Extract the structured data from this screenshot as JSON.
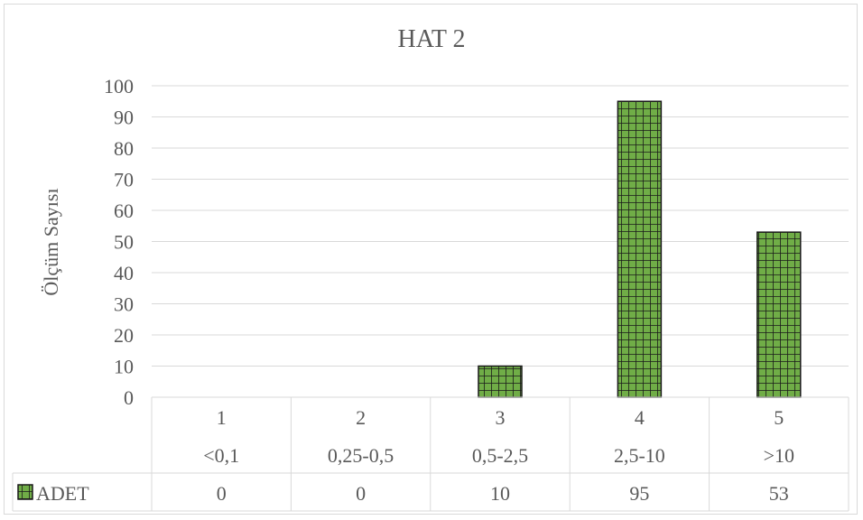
{
  "chart_data": {
    "type": "bar",
    "title": "HAT 2",
    "xlabel": "",
    "ylabel": "Ölçüm Sayısı",
    "ylim": [
      0,
      100
    ],
    "yticks": [
      0,
      10,
      20,
      30,
      40,
      50,
      60,
      70,
      80,
      90,
      100
    ],
    "grid": true,
    "categories": [
      "1",
      "2",
      "3",
      "4",
      "5"
    ],
    "sublabels": [
      "<0,1",
      "0,25-0,5",
      "0,5-2,5",
      "2,5-10",
      ">10"
    ],
    "series": [
      {
        "name": "ADET",
        "values": [
          0,
          0,
          10,
          95,
          53
        ],
        "color": "#70ad47",
        "pattern": "grid"
      }
    ],
    "data_table": true
  }
}
